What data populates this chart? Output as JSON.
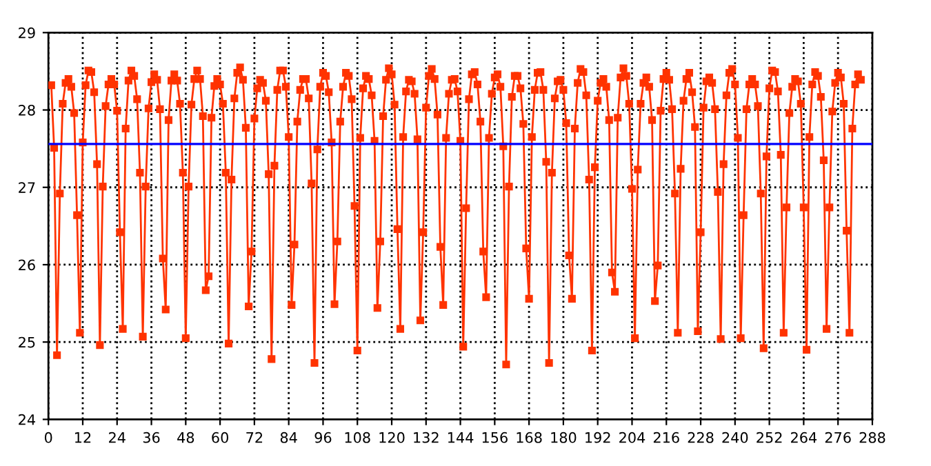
{
  "chart_data": {
    "type": "line",
    "xlim": [
      0,
      288
    ],
    "ylim": [
      24,
      29
    ],
    "xticks": [
      0,
      12,
      24,
      36,
      48,
      60,
      72,
      84,
      96,
      108,
      120,
      132,
      144,
      156,
      168,
      180,
      192,
      204,
      216,
      228,
      240,
      252,
      264,
      276,
      288
    ],
    "yticks": [
      24,
      25,
      26,
      27,
      28,
      29
    ],
    "grid": true,
    "marker": "square",
    "line_style": "solid",
    "ref_lines": [
      {
        "axis": "y",
        "value": 27.56,
        "color": "#0000ff"
      }
    ],
    "series": [
      {
        "color": "#ff3300",
        "x": [
          1,
          2,
          3,
          4,
          5,
          6,
          7,
          8,
          9,
          10,
          11,
          12,
          13,
          14,
          15,
          16,
          17,
          18,
          19,
          20,
          21,
          22,
          23,
          24,
          25,
          26,
          27,
          28,
          29,
          30,
          31,
          32,
          33,
          34,
          35,
          36,
          37,
          38,
          39,
          40,
          41,
          42,
          43,
          44,
          45,
          46,
          47,
          48,
          49,
          50,
          51,
          52,
          53,
          54,
          55,
          56,
          57,
          58,
          59,
          60,
          61,
          62,
          63,
          64,
          65,
          66,
          67,
          68,
          69,
          70,
          71,
          72,
          73,
          74,
          75,
          76,
          77,
          78,
          79,
          80,
          81,
          82,
          83,
          84,
          85,
          86,
          87,
          88,
          89,
          90,
          91,
          92,
          93,
          94,
          95,
          96,
          97,
          98,
          99,
          100,
          101,
          102,
          103,
          104,
          105,
          106,
          107,
          108,
          109,
          110,
          111,
          112,
          113,
          114,
          115,
          116,
          117,
          118,
          119,
          120,
          121,
          122,
          123,
          124,
          125,
          126,
          127,
          128,
          129,
          130,
          131,
          132,
          133,
          134,
          135,
          136,
          137,
          138,
          139,
          140,
          141,
          142,
          143,
          144,
          145,
          146,
          147,
          148,
          149,
          150,
          151,
          152,
          153,
          154,
          155,
          156,
          157,
          158,
          159,
          160,
          161,
          162,
          163,
          164,
          165,
          166,
          167,
          168,
          169,
          170,
          171,
          172,
          173,
          174,
          175,
          176,
          177,
          178,
          179,
          180,
          181,
          182,
          183,
          184,
          185,
          186,
          187,
          188,
          189,
          190,
          191,
          192,
          193,
          194,
          195,
          196,
          197,
          198,
          199,
          200,
          201,
          202,
          203,
          204,
          205,
          206,
          207,
          208,
          209,
          210,
          211,
          212,
          213,
          214,
          215,
          216,
          217,
          218,
          219,
          220,
          221,
          222,
          223,
          224,
          225,
          226,
          227,
          228,
          229,
          230,
          231,
          232,
          233,
          234,
          235,
          236,
          237,
          238,
          239,
          240,
          241,
          242,
          243,
          244,
          245,
          246,
          247,
          248,
          249,
          250,
          251,
          252,
          253,
          254,
          255,
          256,
          257,
          258,
          259,
          260,
          261,
          262,
          263,
          264,
          265,
          266,
          267,
          268,
          269,
          270,
          271,
          272,
          273,
          274,
          275,
          276,
          277,
          278,
          279,
          280,
          281,
          282,
          283,
          284
        ],
        "values": [
          28.32,
          27.51,
          24.83,
          26.92,
          28.08,
          28.35,
          28.4,
          28.3,
          27.96,
          26.64,
          25.12,
          27.58,
          28.32,
          28.51,
          28.49,
          28.23,
          27.3,
          24.96,
          27.01,
          28.05,
          28.33,
          28.4,
          28.33,
          27.99,
          26.42,
          25.17,
          27.76,
          28.38,
          28.51,
          28.44,
          28.14,
          27.19,
          25.07,
          27.01,
          28.02,
          28.36,
          28.46,
          28.39,
          28.01,
          26.08,
          25.42,
          27.87,
          28.38,
          28.46,
          28.38,
          28.08,
          27.19,
          25.05,
          27.01,
          28.07,
          28.4,
          28.51,
          28.4,
          27.92,
          25.67,
          25.85,
          27.9,
          28.31,
          28.4,
          28.33,
          28.08,
          27.19,
          24.98,
          27.1,
          28.15,
          28.48,
          28.55,
          28.39,
          27.77,
          25.46,
          26.17,
          27.89,
          28.28,
          28.39,
          28.35,
          28.12,
          27.17,
          24.78,
          27.28,
          28.26,
          28.51,
          28.51,
          28.3,
          27.65,
          25.48,
          26.26,
          27.85,
          28.26,
          28.4,
          28.4,
          28.15,
          27.05,
          24.73,
          27.49,
          28.3,
          28.48,
          28.44,
          28.23,
          27.58,
          25.49,
          26.3,
          27.85,
          28.3,
          28.48,
          28.44,
          28.14,
          26.76,
          24.89,
          27.64,
          28.28,
          28.44,
          28.4,
          28.19,
          27.6,
          25.44,
          26.3,
          27.92,
          28.39,
          28.54,
          28.46,
          28.07,
          26.46,
          25.17,
          27.65,
          28.24,
          28.39,
          28.37,
          28.21,
          27.62,
          25.28,
          26.42,
          28.03,
          28.44,
          28.53,
          28.4,
          27.94,
          26.23,
          25.48,
          27.64,
          28.21,
          28.39,
          28.4,
          28.24,
          27.6,
          24.94,
          26.73,
          28.14,
          28.46,
          28.49,
          28.33,
          27.85,
          26.17,
          25.58,
          27.64,
          28.21,
          28.42,
          28.46,
          28.3,
          27.53,
          24.71,
          27.01,
          28.17,
          28.44,
          28.44,
          28.28,
          27.82,
          26.21,
          25.56,
          27.65,
          28.26,
          28.48,
          28.49,
          28.26,
          27.33,
          24.73,
          27.19,
          28.15,
          28.37,
          28.39,
          28.26,
          27.83,
          26.12,
          25.56,
          27.76,
          28.35,
          28.53,
          28.49,
          28.19,
          27.1,
          24.89,
          27.26,
          28.12,
          28.35,
          28.4,
          28.3,
          27.87,
          25.9,
          25.65,
          27.9,
          28.42,
          28.54,
          28.44,
          28.08,
          26.98,
          25.05,
          27.23,
          28.08,
          28.35,
          28.42,
          28.3,
          27.87,
          25.53,
          25.99,
          27.99,
          28.4,
          28.48,
          28.39,
          28.01,
          26.92,
          25.12,
          27.24,
          28.12,
          28.4,
          28.48,
          28.23,
          27.78,
          25.14,
          26.42,
          28.03,
          28.37,
          28.42,
          28.35,
          28.01,
          26.94,
          25.04,
          27.3,
          28.19,
          28.48,
          28.53,
          28.33,
          27.64,
          25.05,
          26.64,
          28.01,
          28.33,
          28.4,
          28.33,
          28.05,
          26.92,
          24.92,
          27.4,
          28.28,
          28.51,
          28.49,
          28.24,
          27.42,
          25.12,
          26.74,
          27.96,
          28.3,
          28.4,
          28.37,
          28.08,
          26.74,
          24.9,
          27.65,
          28.33,
          28.49,
          28.44,
          28.17,
          27.35,
          25.17,
          26.74,
          27.98,
          28.35,
          28.48,
          28.42,
          28.08,
          26.44,
          25.12,
          27.76,
          28.33,
          28.46,
          28.39
        ]
      }
    ]
  }
}
